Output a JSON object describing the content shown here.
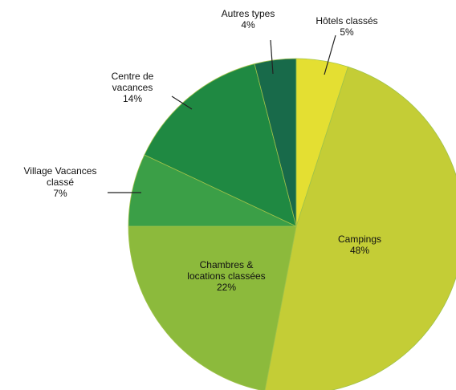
{
  "chart_data": {
    "type": "pie",
    "categories": [
      "Hôtels classés",
      "Campings",
      "Chambres &\nlocations classées",
      "Village Vacances\nclassé",
      "Centre de\nvacances",
      "Autres types"
    ],
    "values": [
      5,
      48,
      22,
      7,
      14,
      4
    ],
    "value_labels": [
      "5%",
      "48%",
      "22%",
      "7%",
      "14%",
      "4%"
    ],
    "colors": [
      "#e4df32",
      "#c4cd36",
      "#8cba3c",
      "#3b9f47",
      "#1f8942",
      "#186a4a"
    ]
  }
}
